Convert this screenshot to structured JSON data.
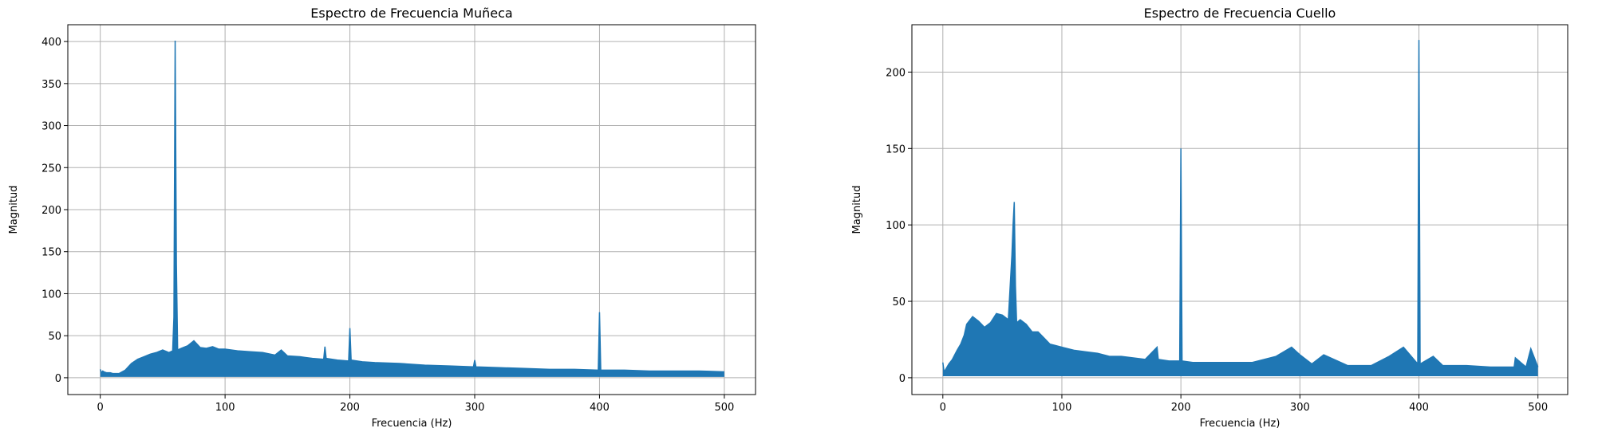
{
  "colors": {
    "series": "#1f77b4",
    "grid": "#b0b0b0",
    "axes": "#000000",
    "background": "#ffffff"
  },
  "chart_data": [
    {
      "type": "line",
      "title": "Espectro de Frecuencia Muñeca",
      "xlabel": "Frecuencia (Hz)",
      "ylabel": "Magnitud",
      "xlim": [
        -26,
        525
      ],
      "ylim": [
        -20,
        420
      ],
      "xticks": [
        0,
        100,
        200,
        300,
        400,
        500
      ],
      "yticks": [
        0,
        50,
        100,
        150,
        200,
        250,
        300,
        350,
        400
      ],
      "grid": true,
      "series": [
        {
          "x": [
            0,
            1,
            2,
            3,
            5,
            8,
            10,
            15,
            20,
            25,
            30,
            35,
            40,
            45,
            50,
            55,
            58,
            59,
            60,
            61,
            62,
            65,
            70,
            75,
            80,
            85,
            90,
            95,
            100,
            110,
            120,
            130,
            140,
            145,
            150,
            160,
            170,
            179,
            180,
            181,
            190,
            199,
            200,
            201,
            210,
            220,
            240,
            260,
            280,
            299,
            300,
            301,
            320,
            340,
            360,
            380,
            399,
            400,
            401,
            420,
            440,
            460,
            480,
            500
          ],
          "y": [
            10,
            6,
            8,
            7,
            6,
            6,
            5,
            5,
            9,
            17,
            22,
            25,
            28,
            30,
            33,
            30,
            32,
            72,
            401,
            135,
            33,
            35,
            38,
            44,
            36,
            35,
            37,
            34,
            34,
            32,
            31,
            30,
            27,
            33,
            26,
            25,
            23,
            22,
            37,
            23,
            21,
            20,
            59,
            21,
            19,
            18,
            17,
            15,
            14,
            13,
            21,
            13,
            12,
            11,
            10,
            10,
            9,
            78,
            9,
            9,
            8,
            8,
            8,
            7
          ]
        }
      ]
    },
    {
      "type": "line",
      "title": "Espectro de Frecuencia Cuello",
      "xlabel": "Frecuencia (Hz)",
      "ylabel": "Magnitud",
      "xlim": [
        -26,
        525
      ],
      "ylim": [
        -11,
        231
      ],
      "xticks": [
        0,
        100,
        200,
        300,
        400,
        500
      ],
      "yticks": [
        0,
        50,
        100,
        150,
        200
      ],
      "grid": true,
      "series": [
        {
          "x": [
            0,
            1,
            2,
            5,
            8,
            10,
            12,
            15,
            18,
            20,
            25,
            30,
            35,
            40,
            45,
            50,
            55,
            58,
            59,
            60,
            61,
            62,
            65,
            70,
            75,
            80,
            85,
            90,
            95,
            100,
            110,
            120,
            130,
            140,
            150,
            160,
            170,
            180,
            181,
            190,
            199,
            200,
            201,
            210,
            220,
            240,
            260,
            280,
            293,
            300,
            310,
            320,
            340,
            360,
            375,
            387,
            399,
            400,
            401,
            412,
            420,
            440,
            460,
            480,
            481,
            490,
            494,
            500
          ],
          "y": [
            10,
            4,
            5,
            9,
            12,
            15,
            18,
            22,
            28,
            35,
            40,
            37,
            33,
            36,
            42,
            41,
            38,
            80,
            100,
            115,
            60,
            36,
            38,
            35,
            30,
            30,
            26,
            22,
            21,
            20,
            18,
            17,
            16,
            14,
            14,
            13,
            12,
            20,
            12,
            11,
            11,
            150,
            11,
            10,
            10,
            10,
            10,
            14,
            20,
            15,
            9,
            15,
            8,
            8,
            14,
            20,
            9,
            221,
            9,
            14,
            8,
            8,
            7,
            7,
            13,
            7,
            19,
            7
          ]
        }
      ]
    }
  ]
}
